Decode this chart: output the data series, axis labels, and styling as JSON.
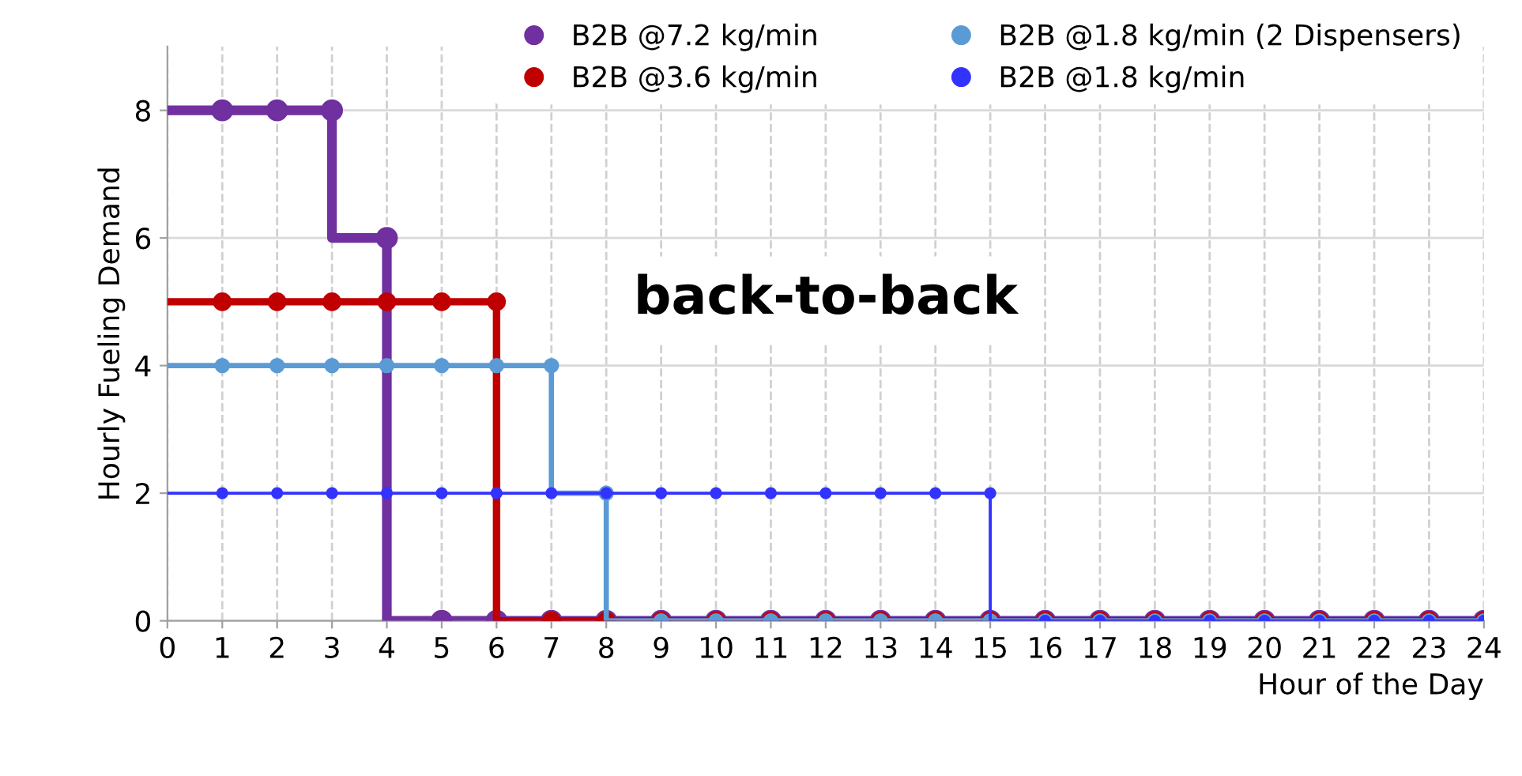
{
  "chart_data": {
    "type": "step",
    "xlabel": "Hour of the Day",
    "ylabel": "Hourly Fueling Demand",
    "x": [
      0,
      1,
      2,
      3,
      4,
      5,
      6,
      7,
      8,
      9,
      10,
      11,
      12,
      13,
      14,
      15,
      16,
      17,
      18,
      19,
      20,
      21,
      22,
      23,
      24
    ],
    "series": [
      {
        "name": "B2B @7.2 kg/min",
        "color": "#7030a0",
        "values": [
          8,
          8,
          8,
          8,
          6,
          0,
          0,
          0,
          0,
          0,
          0,
          0,
          0,
          0,
          0,
          0,
          0,
          0,
          0,
          0,
          0,
          0,
          0,
          0,
          0
        ]
      },
      {
        "name": "B2B @3.6 kg/min",
        "color": "#c00000",
        "values": [
          5,
          5,
          5,
          5,
          5,
          5,
          5,
          0,
          0,
          0,
          0,
          0,
          0,
          0,
          0,
          0,
          0,
          0,
          0,
          0,
          0,
          0,
          0,
          0,
          0
        ]
      },
      {
        "name": "B2B @1.8 kg/min (2 Dispensers)",
        "color": "#5b9bd5",
        "values": [
          4,
          4,
          4,
          4,
          4,
          4,
          4,
          4,
          2,
          0,
          0,
          0,
          0,
          0,
          0,
          0,
          0,
          0,
          0,
          0,
          0,
          0,
          0,
          0,
          0
        ]
      },
      {
        "name": "B2B @1.8 kg/min",
        "color": "#3333ff",
        "values": [
          2,
          2,
          2,
          2,
          2,
          2,
          2,
          2,
          2,
          2,
          2,
          2,
          2,
          2,
          2,
          2,
          0,
          0,
          0,
          0,
          0,
          0,
          0,
          0,
          0
        ]
      }
    ],
    "annotations": [
      "back-to-back"
    ],
    "xlim": [
      0,
      24
    ],
    "ylim": [
      0,
      9
    ],
    "xticks": [
      0,
      1,
      2,
      3,
      4,
      5,
      6,
      7,
      8,
      9,
      10,
      11,
      12,
      13,
      14,
      15,
      16,
      17,
      18,
      19,
      20,
      21,
      22,
      23,
      24
    ],
    "yticks": [
      0,
      2,
      4,
      6,
      8
    ],
    "grid": true,
    "legend": "top",
    "marker": "circle",
    "line_style": "solid"
  }
}
